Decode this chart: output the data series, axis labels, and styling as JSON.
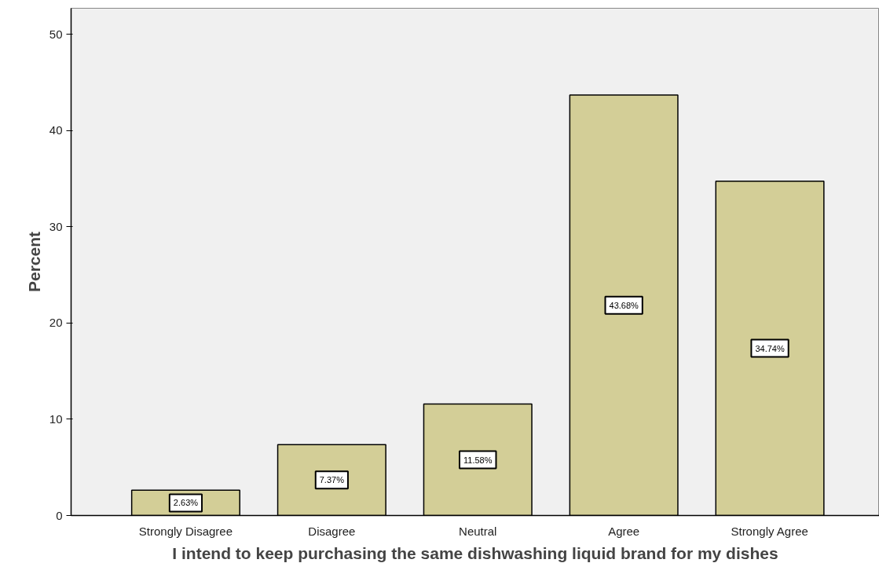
{
  "chart_data": {
    "type": "bar",
    "xlabel": "I intend to keep purchasing the same dishwashing liquid brand for my dishes",
    "ylabel": "Percent",
    "categories": [
      "Strongly Disagree",
      "Disagree",
      "Neutral",
      "Agree",
      "Strongly Agree"
    ],
    "values": [
      2.63,
      7.37,
      11.58,
      43.68,
      34.74
    ],
    "value_labels": [
      "2.63%",
      "7.37%",
      "11.58%",
      "43.68%",
      "34.74%"
    ],
    "color": "#d3ce97",
    "ylim": [
      0,
      52.7
    ],
    "yticks": [
      0,
      10,
      20,
      30,
      40,
      50
    ],
    "grid": false
  }
}
